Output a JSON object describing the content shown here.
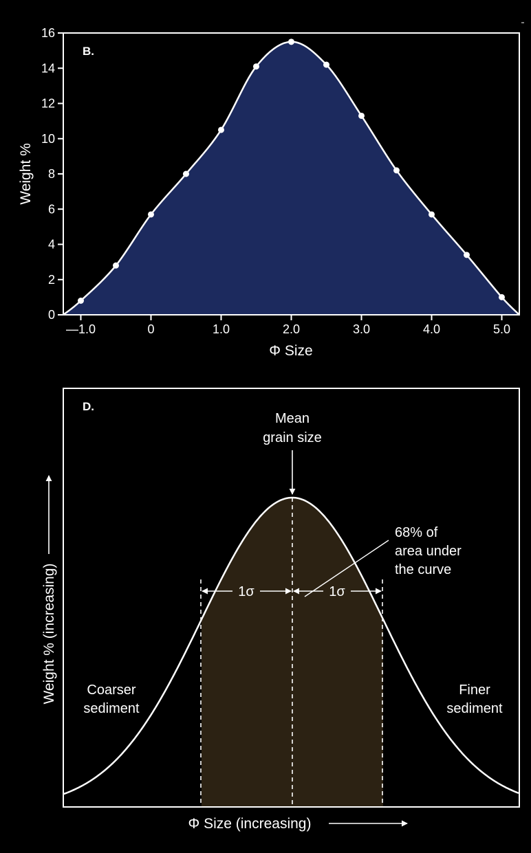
{
  "colors": {
    "background": "#000000",
    "panel_b_fill": "#1c2a5e",
    "panel_d_fill": "#2c2213",
    "line": "#ffffff"
  },
  "chart_data": [
    {
      "type": "area",
      "panel_label": "B.",
      "xlabel": "Φ Size",
      "ylabel": "Weight %",
      "xlim": [
        -1.25,
        5.25
      ],
      "ylim": [
        0,
        16
      ],
      "x_tick_labels": [
        "—1.0",
        "0",
        "1.0",
        "2.0",
        "3.0",
        "4.0",
        "5.0"
      ],
      "y_tick_labels": [
        "0",
        "2",
        "4",
        "6",
        "8",
        "10",
        "12",
        "14",
        "16"
      ],
      "x": [
        -1.0,
        -0.5,
        0.0,
        0.5,
        1.0,
        1.5,
        2.0,
        2.5,
        3.0,
        3.5,
        4.0,
        4.5,
        5.0
      ],
      "values": [
        0.8,
        2.8,
        5.7,
        8.0,
        10.5,
        14.1,
        15.5,
        14.2,
        11.3,
        8.2,
        5.7,
        3.4,
        1.0
      ],
      "grid": false,
      "markers": true
    },
    {
      "type": "area",
      "panel_label": "D.",
      "xlabel": "Φ Size (increasing)",
      "ylabel": "Weight % (increasing)",
      "distribution": "normal",
      "mean": 0,
      "sigma": 1,
      "shaded_range": [
        -1,
        1
      ],
      "annotations": {
        "mean_label": [
          "Mean",
          "grain size"
        ],
        "area_label": [
          "68% of",
          "area under",
          "the curve"
        ],
        "sigma_label": "1σ",
        "left_label": [
          "Coarser",
          "sediment"
        ],
        "right_label": [
          "Finer",
          "sediment"
        ]
      }
    }
  ]
}
